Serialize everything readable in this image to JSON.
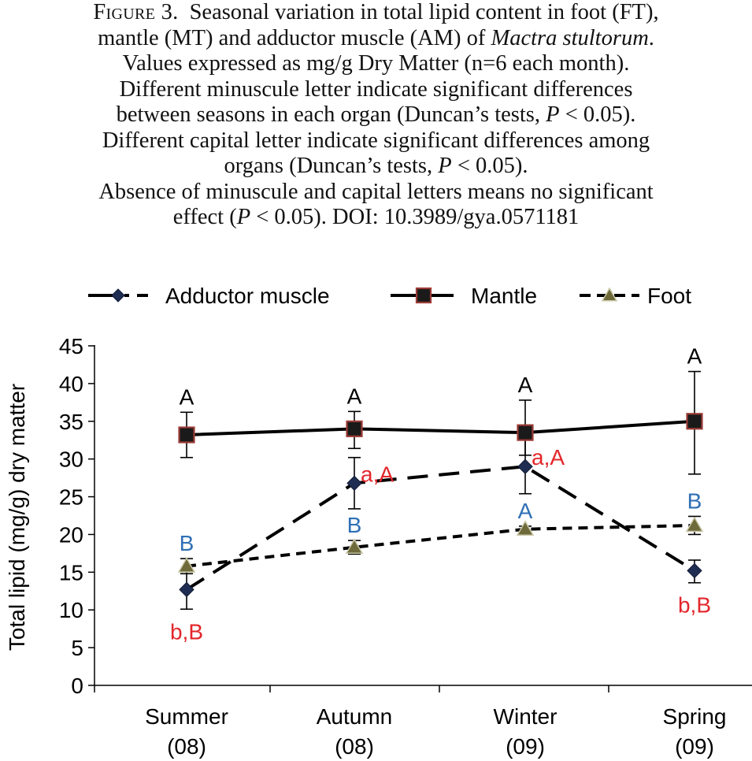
{
  "caption": {
    "figure_label": "Figure 3.",
    "line1": "Seasonal variation in total lipid content in foot (FT),",
    "line2_a": "mantle (MT) and adductor muscle (AM) of ",
    "line2_species": "Mactra stultorum",
    "line2_b": ".",
    "line3": "Values expressed as mg/g Dry Matter (n=6 each month).",
    "line4": "Different minuscule letter indicate significant differences",
    "line5_a": "between seasons in each organ (Duncan’s tests, ",
    "line5_p": "P",
    "line5_b": " < 0.05).",
    "line6": "Different capital letter indicate significant differences among",
    "line7_a": "organs (Duncan’s tests, ",
    "line7_p": "P",
    "line7_b": " < 0.05).",
    "line8": "Absence of minuscule and capital letters means no significant",
    "line9_a": "effect (",
    "line9_p": "P",
    "line9_b": " < 0.05). DOI: 10.3989/gya.0571181"
  },
  "colors": {
    "axis": "#000000",
    "line": "#000000",
    "mantle_fill": "#1a1a1a",
    "mantle_edge": "#9b3b36",
    "am_fill": "#1f2d52",
    "foot_fill": "#6f6a3a",
    "label_black": "#000000",
    "label_blue": "#2f6fb5",
    "label_red": "#e3262b"
  },
  "chart_data": {
    "type": "line",
    "title": "",
    "xlabel": "",
    "ylabel": "Total lipid (mg/g) dry matter",
    "categories": [
      [
        "Summer",
        "(08)"
      ],
      [
        "Autumn",
        "(08)"
      ],
      [
        "Winter",
        "(09)"
      ],
      [
        "Spring",
        "(09)"
      ]
    ],
    "ylim": [
      0,
      45
    ],
    "yticks": [
      0,
      5,
      10,
      15,
      20,
      25,
      30,
      35,
      40,
      45
    ],
    "grid": false,
    "legend_position": "top",
    "series": [
      {
        "name": "Adductor muscle",
        "marker": "diamond",
        "style": "long-dash",
        "values": [
          12.7,
          26.8,
          29.0,
          15.2
        ],
        "err_low": [
          2.6,
          3.4,
          3.6,
          1.6
        ],
        "err_high": [
          2.6,
          3.4,
          3.6,
          1.4
        ],
        "labels": [
          {
            "text": "b,B",
            "color": "red",
            "pos": "below"
          },
          {
            "text": "a,A",
            "color": "red",
            "pos": "right"
          },
          {
            "text": "a,A",
            "color": "red",
            "pos": "right"
          },
          {
            "text": "b,B",
            "color": "red",
            "pos": "below"
          }
        ]
      },
      {
        "name": "Mantle",
        "marker": "square",
        "style": "solid",
        "values": [
          33.2,
          34.0,
          33.5,
          35.0
        ],
        "err_low": [
          3.0,
          2.6,
          3.0,
          7.0
        ],
        "err_high": [
          3.0,
          2.3,
          4.3,
          6.6
        ],
        "labels": [
          {
            "text": "A",
            "color": "black",
            "pos": "above"
          },
          {
            "text": "A",
            "color": "black",
            "pos": "above"
          },
          {
            "text": "A",
            "color": "black",
            "pos": "above"
          },
          {
            "text": "A",
            "color": "black",
            "pos": "above"
          }
        ]
      },
      {
        "name": "Foot",
        "marker": "triangle",
        "style": "dash",
        "values": [
          15.8,
          18.3,
          20.7,
          21.2
        ],
        "err_low": [
          1.0,
          0.9,
          0.4,
          1.2
        ],
        "err_high": [
          1.0,
          0.9,
          0.4,
          1.2
        ],
        "labels": [
          {
            "text": "B",
            "color": "blue",
            "pos": "above"
          },
          {
            "text": "B",
            "color": "blue",
            "pos": "above"
          },
          {
            "text": "A",
            "color": "blue",
            "pos": "above"
          },
          {
            "text": "B",
            "color": "blue",
            "pos": "above"
          }
        ]
      }
    ]
  }
}
